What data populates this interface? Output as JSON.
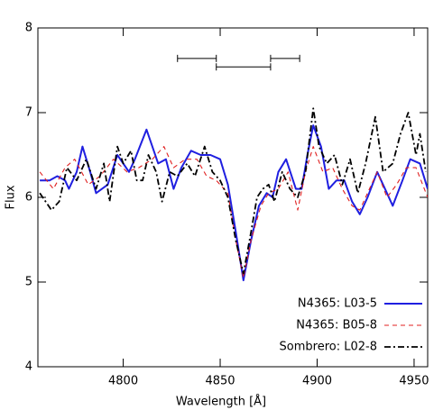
{
  "chart_data": {
    "type": "line",
    "xlabel": "Wavelength [Å]",
    "ylabel": "Flux",
    "xlim": [
      4756,
      4957
    ],
    "ylim": [
      4,
      8
    ],
    "xticks": [
      4800,
      4850,
      4900,
      4950
    ],
    "yticks": [
      4,
      5,
      6,
      7,
      8
    ],
    "legend": "lower right",
    "brackets": [
      {
        "x": [
          4828,
          4848
        ],
        "y": 7.64
      },
      {
        "x": [
          4848,
          4876
        ],
        "y": 7.54
      },
      {
        "x": [
          4876,
          4891
        ],
        "y": 7.64
      }
    ],
    "series": [
      {
        "name": "N4365: L03-5",
        "color": "#1f1fe0",
        "style": "solid",
        "x": [
          4757,
          4762,
          4766,
          4770,
          4772,
          4776,
          4779,
          4783,
          4786,
          4792,
          4797,
          4803,
          4806,
          4812,
          4818,
          4822,
          4826,
          4830,
          4835,
          4840,
          4845,
          4850,
          4854,
          4858,
          4862,
          4866,
          4870,
          4874,
          4877,
          4880,
          4884,
          4889,
          4892,
          4895,
          4898,
          4902,
          4906,
          4910,
          4914,
          4918,
          4922,
          4926,
          4931,
          4935,
          4939,
          4944,
          4948,
          4953,
          4957
        ],
        "values": [
          6.2,
          6.2,
          6.25,
          6.2,
          6.1,
          6.3,
          6.6,
          6.3,
          6.05,
          6.15,
          6.5,
          6.3,
          6.45,
          6.8,
          6.4,
          6.45,
          6.1,
          6.35,
          6.55,
          6.5,
          6.5,
          6.45,
          6.15,
          5.6,
          5.02,
          5.5,
          5.9,
          6.05,
          6.0,
          6.3,
          6.45,
          6.1,
          6.1,
          6.5,
          6.85,
          6.6,
          6.1,
          6.2,
          6.2,
          5.95,
          5.8,
          6.0,
          6.3,
          6.1,
          5.9,
          6.2,
          6.45,
          6.4,
          6.1
        ]
      },
      {
        "name": "N4365: B05-8",
        "color": "#e02020",
        "style": "dashed",
        "x": [
          4757,
          4764,
          4770,
          4775,
          4782,
          4788,
          4795,
          4802,
          4808,
          4815,
          4821,
          4826,
          4832,
          4838,
          4843,
          4848,
          4854,
          4858,
          4862,
          4866,
          4871,
          4875,
          4880,
          4885,
          4890,
          4894,
          4898,
          4903,
          4908,
          4913,
          4918,
          4922,
          4927,
          4931,
          4936,
          4941,
          4946,
          4951,
          4957
        ],
        "values": [
          6.3,
          6.1,
          6.35,
          6.45,
          6.15,
          6.25,
          6.45,
          6.3,
          6.35,
          6.45,
          6.6,
          6.35,
          6.45,
          6.45,
          6.25,
          6.2,
          6.05,
          5.5,
          5.05,
          5.5,
          5.9,
          6.05,
          6.1,
          6.3,
          5.85,
          6.3,
          6.6,
          6.3,
          6.35,
          6.1,
          5.9,
          5.85,
          6.1,
          6.3,
          6.0,
          6.15,
          6.35,
          6.35,
          6.0
        ]
      },
      {
        "name": "Sombrero: L02-8",
        "color": "#000000",
        "style": "dashdot",
        "x": [
          4757,
          4763,
          4767,
          4771,
          4776,
          4781,
          4786,
          4790,
          4793,
          4797,
          4800,
          4804,
          4807,
          4810,
          4813,
          4817,
          4820,
          4824,
          4828,
          4833,
          4837,
          4842,
          4846,
          4850,
          4854,
          4858,
          4862,
          4866,
          4869,
          4872,
          4875,
          4878,
          4882,
          4886,
          4890,
          4894,
          4898,
          4901,
          4905,
          4909,
          4913,
          4917,
          4921,
          4925,
          4930,
          4934,
          4939,
          4943,
          4947,
          4951,
          4953,
          4956
        ],
        "values": [
          6.05,
          5.85,
          5.95,
          6.35,
          6.2,
          6.45,
          6.1,
          6.4,
          5.95,
          6.6,
          6.4,
          6.55,
          6.2,
          6.2,
          6.5,
          6.3,
          5.95,
          6.3,
          6.25,
          6.4,
          6.25,
          6.6,
          6.3,
          6.2,
          6.0,
          5.5,
          5.1,
          5.6,
          6.0,
          6.1,
          6.15,
          5.95,
          6.3,
          6.1,
          6.0,
          6.3,
          7.05,
          6.6,
          6.4,
          6.5,
          6.15,
          6.45,
          6.05,
          6.4,
          6.95,
          6.3,
          6.4,
          6.75,
          7.0,
          6.5,
          6.75,
          6.3
        ]
      }
    ]
  }
}
